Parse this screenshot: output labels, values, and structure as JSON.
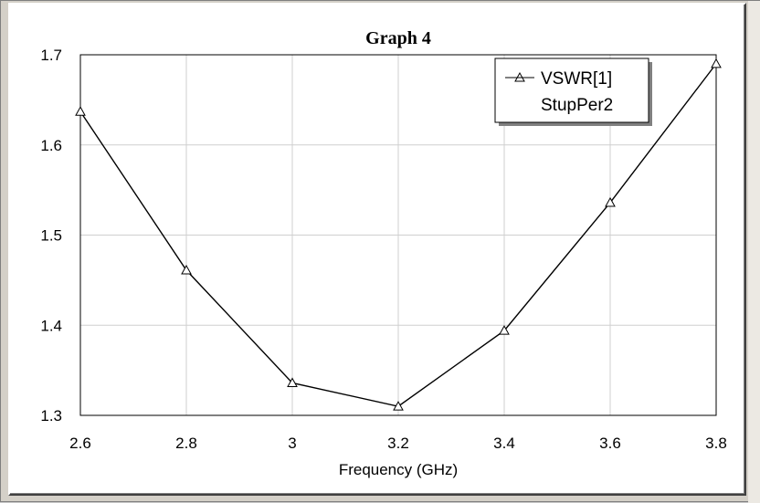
{
  "chart_data": {
    "type": "line",
    "title": "Graph 4",
    "xlabel": "Frequency (GHz)",
    "ylabel": "",
    "xlim": [
      2.6,
      3.8
    ],
    "ylim": [
      1.3,
      1.7
    ],
    "x_ticks": [
      "2.6",
      "2.8",
      "3",
      "3.2",
      "3.4",
      "3.6",
      "3.8"
    ],
    "y_ticks": [
      "1.3",
      "1.4",
      "1.5",
      "1.6",
      "1.7"
    ],
    "grid": true,
    "legend_position": "top-right",
    "series": [
      {
        "name": "VSWR[1]",
        "sub_label": "StupPer2",
        "marker": "triangle",
        "color": "#000000",
        "x": [
          2.6,
          2.8,
          3.0,
          3.2,
          3.4,
          3.6,
          3.8
        ],
        "values": [
          1.637,
          1.461,
          1.336,
          1.31,
          1.394,
          1.536,
          1.69
        ]
      }
    ]
  }
}
